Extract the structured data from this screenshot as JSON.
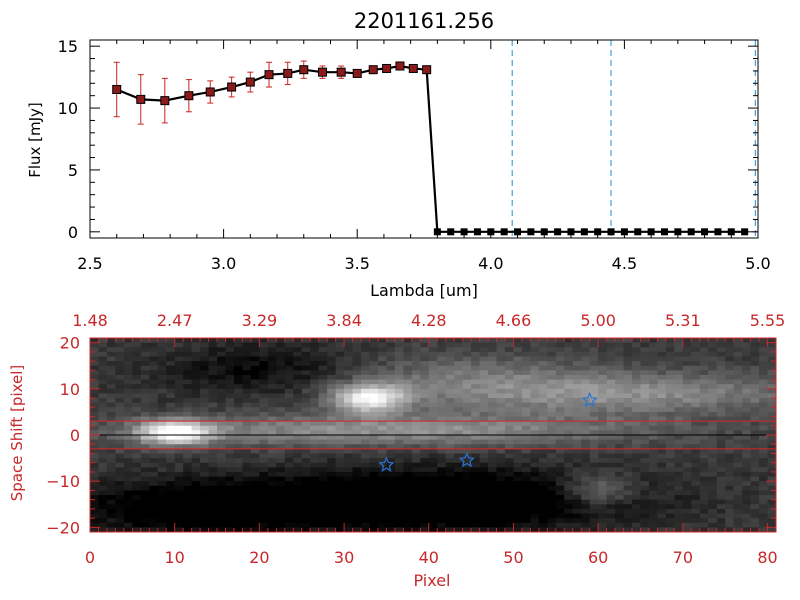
{
  "chart_data": [
    {
      "type": "line",
      "title": "2201161.256",
      "xlabel": "Lambda [um]",
      "ylabel": "Flux [mJy]",
      "xlim": [
        2.5,
        5.0
      ],
      "ylim": [
        -0.5,
        15.5
      ],
      "xticks": [
        "2.5",
        "3.0",
        "3.5",
        "4.0",
        "4.5",
        "5.0"
      ],
      "xtick_values": [
        2.5,
        3.0,
        3.5,
        4.0,
        4.5,
        5.0
      ],
      "yticks": [
        "0",
        "5",
        "10",
        "15"
      ],
      "ytick_values": [
        0,
        5,
        10,
        15
      ],
      "series": [
        {
          "name": "flux",
          "color": "#000000",
          "marker_color": "#8b1a1a",
          "errorbar_color": "#cc2222",
          "x": [
            2.6,
            2.69,
            2.78,
            2.87,
            2.95,
            3.03,
            3.1,
            3.17,
            3.24,
            3.3,
            3.37,
            3.44,
            3.5,
            3.56,
            3.61,
            3.66,
            3.71,
            3.76
          ],
          "y": [
            11.5,
            10.7,
            10.6,
            11.0,
            11.3,
            11.7,
            12.1,
            12.7,
            12.8,
            13.1,
            12.9,
            12.9,
            12.8,
            13.1,
            13.2,
            13.4,
            13.2,
            13.1
          ],
          "yerr": [
            2.2,
            2.0,
            1.8,
            1.3,
            0.9,
            0.8,
            0.8,
            1.0,
            0.9,
            0.7,
            0.5,
            0.5,
            0.3,
            0.3,
            0.3,
            0.3,
            0.3,
            0.3
          ]
        },
        {
          "name": "zero-level",
          "color": "#000000",
          "marker_color": "#000000",
          "x": [
            3.8,
            3.85,
            3.9,
            3.95,
            4.0,
            4.05,
            4.1,
            4.15,
            4.2,
            4.25,
            4.3,
            4.35,
            4.4,
            4.45,
            4.5,
            4.55,
            4.6,
            4.65,
            4.7,
            4.75,
            4.8,
            4.85,
            4.9,
            4.95
          ],
          "y": [
            0,
            0,
            0,
            0,
            0,
            0,
            0,
            0,
            0,
            0,
            0,
            0,
            0,
            0,
            0,
            0,
            0,
            0,
            0,
            0,
            0,
            0,
            0,
            0
          ]
        }
      ],
      "vlines": [
        4.08,
        4.45,
        4.99
      ],
      "vline_color": "#1f8fd6",
      "hline_y": 0,
      "hline_color": "#dd2222"
    },
    {
      "type": "heatmap",
      "xlabel": "Pixel",
      "ylabel": "Space Shift [pixel]",
      "xlim": [
        0,
        81
      ],
      "ylim": [
        -21,
        21
      ],
      "xticks": [
        "0",
        "10",
        "20",
        "30",
        "40",
        "50",
        "60",
        "70",
        "80"
      ],
      "xtick_values": [
        0,
        10,
        20,
        30,
        40,
        50,
        60,
        70,
        80
      ],
      "yticks": [
        "−20",
        "−10",
        "0",
        "10",
        "20"
      ],
      "ytick_values": [
        -20,
        -10,
        0,
        10,
        20
      ],
      "top_axis_labels": [
        "1.48",
        "2.47",
        "3.29",
        "3.84",
        "4.28",
        "4.66",
        "5.00",
        "5.31",
        "5.55"
      ],
      "axis_color": "#c8282a",
      "aperture_lines": [
        3,
        -3
      ],
      "aperture_color": "#dd2222",
      "center_line": 0,
      "stars": [
        {
          "x": 35,
          "y": -6.5
        },
        {
          "x": 44.5,
          "y": -5.5
        },
        {
          "x": 59,
          "y": 7.5
        }
      ],
      "star_color": "#2a72d4"
    }
  ]
}
